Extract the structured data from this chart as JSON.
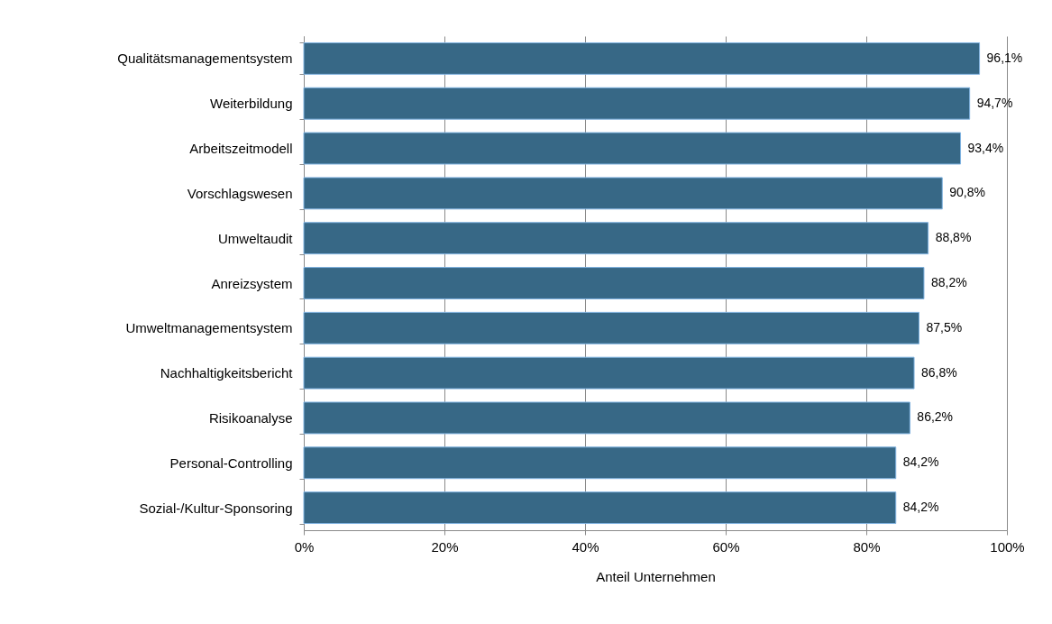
{
  "chart_data": {
    "type": "bar",
    "orientation": "horizontal",
    "xlabel": "Anteil Unternehmen",
    "categories": [
      "Qualitätsmanagementsystem",
      "Weiterbildung",
      "Arbeitszeitmodell",
      "Vorschlagswesen",
      "Umweltaudit",
      "Anreizsystem",
      "Umweltmanagementsystem",
      "Nachhaltigkeitsbericht",
      "Risikoanalyse",
      "Personal-Controlling",
      "Sozial-/Kultur-Sponsoring"
    ],
    "values": [
      96.1,
      94.7,
      93.4,
      90.8,
      88.8,
      88.2,
      87.5,
      86.8,
      86.2,
      84.2,
      84.2
    ],
    "value_labels": [
      "96,1%",
      "94,7%",
      "93,4%",
      "90,8%",
      "88,8%",
      "88,2%",
      "87,5%",
      "86,8%",
      "86,2%",
      "84,2%",
      "84,2%"
    ],
    "color": "#376886",
    "xlim": [
      0,
      100
    ],
    "xticks": [
      {
        "value": 0,
        "label": "0%"
      },
      {
        "value": 20,
        "label": "20%"
      },
      {
        "value": 40,
        "label": "40%"
      },
      {
        "value": 60,
        "label": "60%"
      },
      {
        "value": 80,
        "label": "80%"
      },
      {
        "value": 100,
        "label": "100%"
      }
    ],
    "grid": "x"
  }
}
